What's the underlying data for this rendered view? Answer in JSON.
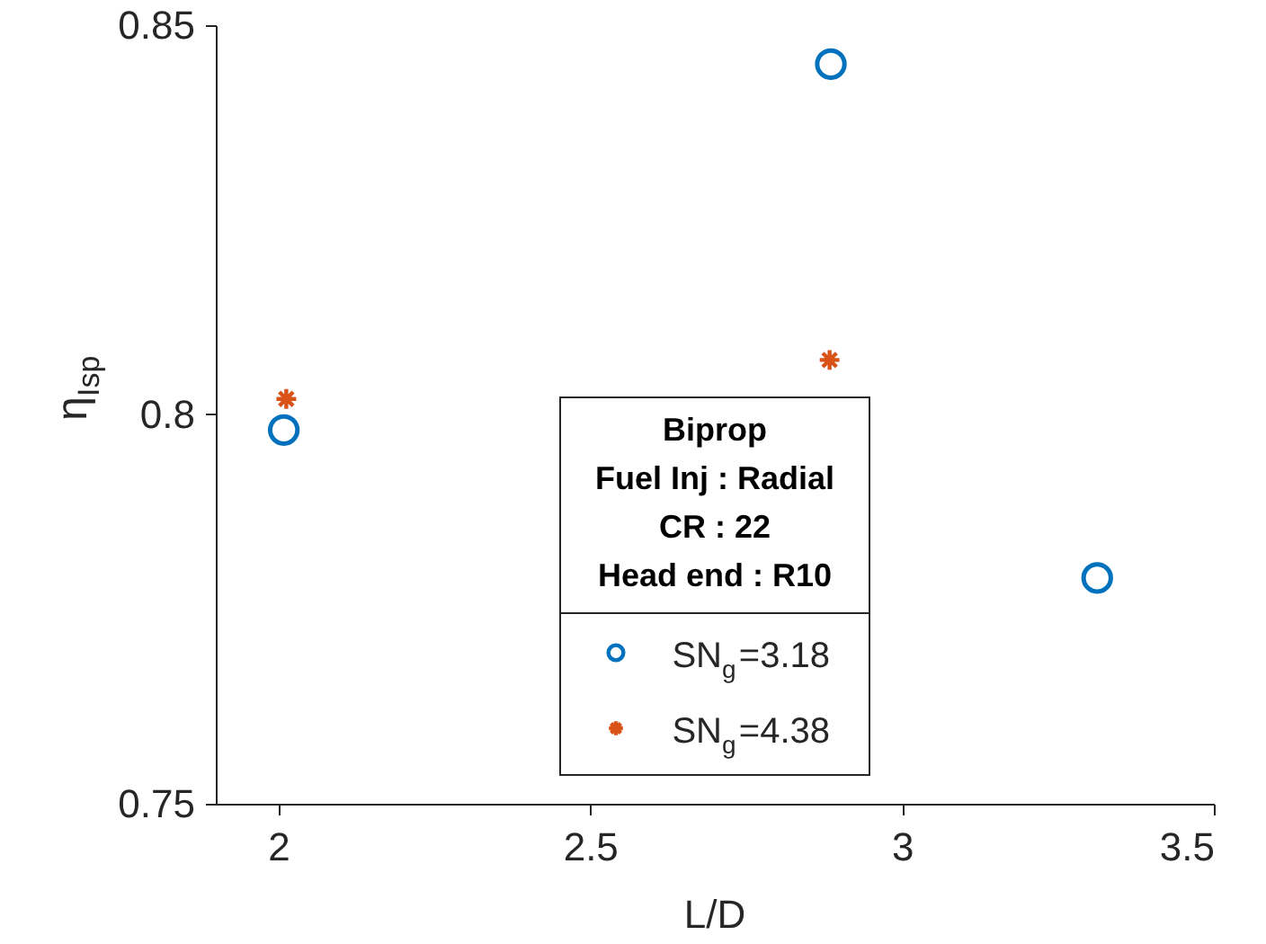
{
  "chart_data": {
    "type": "scatter",
    "xlabel": "L/D",
    "ylabel": "η$_{Isp}$",
    "legend_title": "Biprop\nFuel Inj : Radial\nCR : 22\nHead end : R10",
    "legend": "bottom",
    "grid": false,
    "xlim": [
      1.9,
      3.5
    ],
    "xticks": [
      2,
      2.5,
      3,
      3.5
    ],
    "ylim": [
      0.75,
      0.85
    ],
    "yticks": [
      0.75,
      0.8,
      0.85
    ],
    "series": [
      {
        "name": "SN$_{g}$=3.18",
        "color": "#0072bd",
        "marker": "circle",
        "x": [
          2.009,
          2.886,
          3.313
        ],
        "values": [
          0.798,
          0.845,
          0.779
        ]
      },
      {
        "name": "SN$_{g}$=4.38",
        "color": "#d95319",
        "marker": "cross",
        "x": [
          2.013,
          2.884
        ],
        "values": [
          0.802,
          0.807
        ]
      }
    ]
  }
}
